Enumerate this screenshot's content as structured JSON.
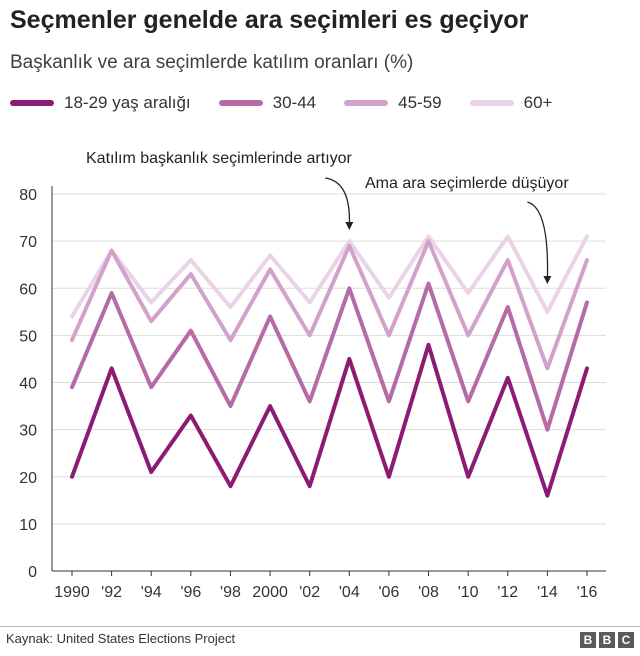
{
  "header": {
    "title": "Seçmenler genelde ara seçimleri es geçiyor",
    "subtitle": "Başkanlık ve ara seçimlerde katılım oranları (%)"
  },
  "footer": {
    "source": "Kaynak: United States Elections Project",
    "logo_letters": [
      "B",
      "B",
      "C"
    ]
  },
  "chart_data": {
    "type": "line",
    "title": "Seçmenler genelde ara seçimleri es geçiyor",
    "subtitle": "Başkanlık ve ara seçimlerde katılım oranları (%)",
    "xlabel": "",
    "ylabel": "",
    "ylim": [
      0,
      80
    ],
    "yticks": [
      0,
      10,
      20,
      30,
      40,
      50,
      60,
      70,
      80
    ],
    "grid": true,
    "legend_position": "top",
    "categories": [
      "1990",
      "'92",
      "'94",
      "'96",
      "'98",
      "2000",
      "'02",
      "'04",
      "'06",
      "'08",
      "'10",
      "'12",
      "'14",
      "'16"
    ],
    "series": [
      {
        "name": "18-29 yaş aralığı",
        "color": "#8c1b73",
        "values": [
          20,
          43,
          21,
          33,
          18,
          35,
          18,
          45,
          20,
          48,
          20,
          41,
          16,
          43
        ]
      },
      {
        "name": "30-44",
        "color": "#b66ba6",
        "values": [
          39,
          59,
          39,
          51,
          35,
          54,
          36,
          60,
          36,
          61,
          36,
          56,
          30,
          57
        ]
      },
      {
        "name": "45-59",
        "color": "#d3a2cb",
        "values": [
          49,
          68,
          53,
          63,
          49,
          64,
          50,
          69,
          50,
          70,
          50,
          66,
          43,
          66
        ]
      },
      {
        "name": "60+",
        "color": "#ead3e6",
        "values": [
          54,
          68,
          57,
          66,
          56,
          67,
          57,
          70,
          58,
          71,
          59,
          71,
          55,
          71
        ]
      }
    ],
    "annotations": [
      {
        "text": "Katılım başkanlık seçimlerinde artıyor",
        "points_to": "'04"
      },
      {
        "text": "Ama ara seçimlerde düşüyor",
        "points_to": "'14"
      }
    ]
  }
}
